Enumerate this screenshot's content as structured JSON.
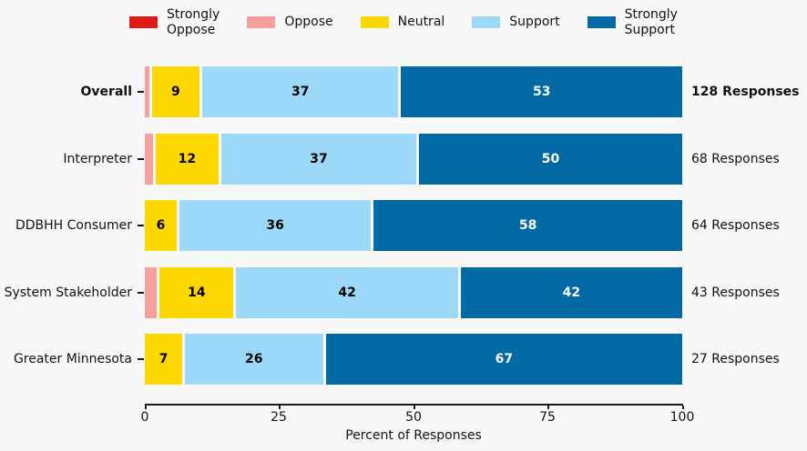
{
  "colors": {
    "strongly_oppose": "#DE1A17",
    "oppose": "#F6A09E",
    "neutral": "#FFD700",
    "support": "#9CD9F9",
    "strongly_support": "#0169A3"
  },
  "label_colors": {
    "strongly_oppose": "#ffffff",
    "oppose": "#000000",
    "neutral": "#000000",
    "support": "#000000",
    "strongly_support": "#ffffff"
  },
  "legend": {
    "items": [
      {
        "key": "strongly_oppose",
        "label": "Strongly\nOppose"
      },
      {
        "key": "oppose",
        "label": "Oppose"
      },
      {
        "key": "neutral",
        "label": "Neutral"
      },
      {
        "key": "support",
        "label": "Support"
      },
      {
        "key": "strongly_support",
        "label": "Strongly\nSupport"
      }
    ]
  },
  "xaxis": {
    "ticks": [
      "0",
      "25",
      "50",
      "75",
      "100"
    ],
    "label": "Percent of Responses"
  },
  "rows": [
    {
      "category": "Overall",
      "category_bold": true,
      "responses_label": "128 Responses",
      "responses_bold": true,
      "segments": [
        {
          "series": "oppose",
          "value": 0.8,
          "label": ""
        },
        {
          "series": "neutral",
          "value": 9,
          "label": "9"
        },
        {
          "series": "support",
          "value": 37,
          "label": "37"
        },
        {
          "series": "strongly_support",
          "value": 53,
          "label": "53"
        }
      ]
    },
    {
      "category": "Interpreter",
      "category_bold": false,
      "responses_label": "68 Responses",
      "responses_bold": false,
      "segments": [
        {
          "series": "oppose",
          "value": 1.5,
          "label": ""
        },
        {
          "series": "neutral",
          "value": 12,
          "label": "12"
        },
        {
          "series": "support",
          "value": 37,
          "label": "37"
        },
        {
          "series": "strongly_support",
          "value": 50,
          "label": "50"
        }
      ]
    },
    {
      "category": "DDBHH Consumer",
      "category_bold": false,
      "responses_label": "64 Responses",
      "responses_bold": false,
      "segments": [
        {
          "series": "oppose",
          "value": 0,
          "label": ""
        },
        {
          "series": "neutral",
          "value": 6,
          "label": "6"
        },
        {
          "series": "support",
          "value": 36,
          "label": "36"
        },
        {
          "series": "strongly_support",
          "value": 58,
          "label": "58"
        }
      ]
    },
    {
      "category": "System Stakeholder",
      "category_bold": false,
      "responses_label": "43 Responses",
      "responses_bold": false,
      "segments": [
        {
          "series": "oppose",
          "value": 2.3,
          "label": ""
        },
        {
          "series": "neutral",
          "value": 14,
          "label": "14"
        },
        {
          "series": "support",
          "value": 42,
          "label": "42"
        },
        {
          "series": "strongly_support",
          "value": 42,
          "label": "42"
        }
      ]
    },
    {
      "category": "Greater Minnesota",
      "category_bold": false,
      "responses_label": "27 Responses",
      "responses_bold": false,
      "segments": [
        {
          "series": "oppose",
          "value": 0,
          "label": ""
        },
        {
          "series": "neutral",
          "value": 7,
          "label": "7"
        },
        {
          "series": "support",
          "value": 26,
          "label": "26"
        },
        {
          "series": "strongly_support",
          "value": 67,
          "label": "67"
        }
      ]
    }
  ],
  "chart_data": {
    "type": "bar",
    "orientation": "horizontal",
    "stacked": true,
    "categories": [
      "Overall",
      "Interpreter",
      "DDBHH Consumer",
      "System Stakeholder",
      "Greater Minnesota"
    ],
    "series": [
      {
        "name": "Strongly Oppose",
        "values": [
          0,
          0,
          0,
          0,
          0
        ]
      },
      {
        "name": "Oppose",
        "values": [
          0.8,
          1.5,
          0,
          2.3,
          0
        ]
      },
      {
        "name": "Neutral",
        "values": [
          9,
          12,
          6,
          14,
          7
        ]
      },
      {
        "name": "Support",
        "values": [
          37,
          37,
          36,
          42,
          26
        ]
      },
      {
        "name": "Strongly Support",
        "values": [
          53,
          50,
          58,
          42,
          67
        ]
      }
    ],
    "responses_counts": [
      128,
      68,
      64,
      43,
      27
    ],
    "title": "",
    "xlabel": "Percent of Responses",
    "ylabel": "",
    "xlim": [
      0,
      100
    ],
    "xticks": [
      0,
      25,
      50,
      75,
      100
    ],
    "grid": false,
    "legend_position": "top"
  }
}
